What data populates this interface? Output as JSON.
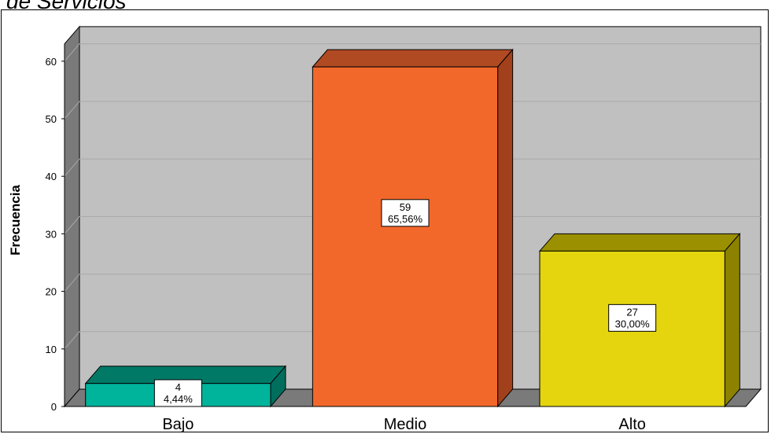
{
  "chart_data": {
    "type": "bar",
    "title": "de Servicios",
    "categories": [
      "Bajo",
      "Medio",
      "Alto"
    ],
    "values": [
      4,
      59,
      27
    ],
    "percent_labels": [
      "4,44%",
      "65,56%",
      "30,00%"
    ],
    "count_labels": [
      "4",
      "59",
      "27"
    ],
    "xlabel": "",
    "ylabel": "Frecuencia",
    "ylim": [
      0,
      63
    ],
    "yticks": [
      "0",
      "10",
      "20",
      "30",
      "40",
      "50",
      "60"
    ],
    "grid": true,
    "legend": "none",
    "style": "3d",
    "colors": {
      "bars": [
        "#00b39b",
        "#f2682b",
        "#e4d50f"
      ],
      "bar_sides": [
        "#006e5c",
        "#a1401b",
        "#8c8200"
      ],
      "bar_tops": [
        "#007a66",
        "#b04a22",
        "#9b9000"
      ],
      "wall": "#c0c0c0",
      "side_wall": "#7a7a7a",
      "floor": "#7a7a7a",
      "grid": "#a8a8a8"
    }
  }
}
